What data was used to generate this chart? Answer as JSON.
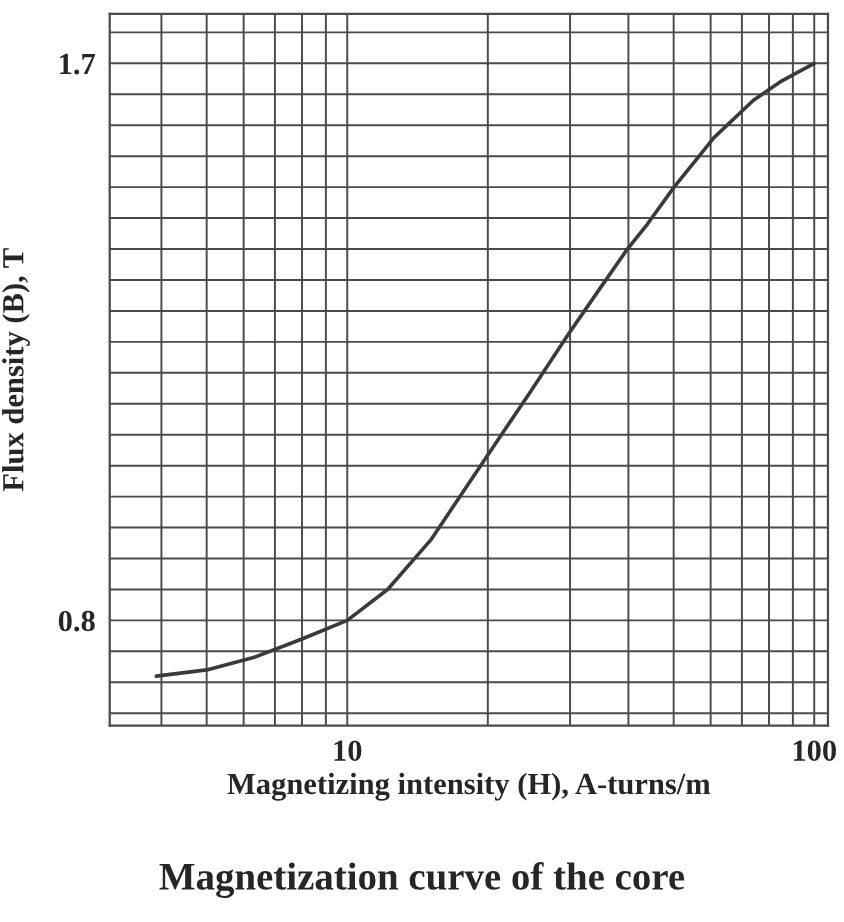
{
  "chart_data": {
    "type": "line",
    "title": "Magnetization curve of the core",
    "xlabel": "Magnetizing intensity (H), A-turns/m",
    "ylabel": "Flux density (B), T",
    "log": "x",
    "x": [
      3.9,
      5.0,
      6.3,
      8.0,
      10,
      12.2,
      15.1,
      19.3,
      24.7,
      29.6,
      34.3,
      39.8,
      43.9,
      50.1,
      61,
      74,
      84.5,
      100
    ],
    "series": [
      {
        "color": "#3a3a3a",
        "values": [
          0.71,
          0.72,
          0.74,
          0.77,
          0.8,
          0.85,
          0.93,
          1.05,
          1.17,
          1.26,
          1.33,
          1.4,
          1.44,
          1.5,
          1.58,
          1.64,
          1.67,
          1.7
        ]
      }
    ],
    "xlim": [
      3.1,
      107
    ],
    "xticks": [
      {
        "value": 4,
        "label": null
      },
      {
        "value": 5,
        "label": null
      },
      {
        "value": 6,
        "label": null
      },
      {
        "value": 7,
        "label": null
      },
      {
        "value": 8,
        "label": null
      },
      {
        "value": 9,
        "label": null
      },
      10,
      {
        "value": 20,
        "label": null
      },
      {
        "value": 30,
        "label": null
      },
      {
        "value": 40,
        "label": null
      },
      {
        "value": 50,
        "label": null
      },
      {
        "value": 60,
        "label": null
      },
      {
        "value": 70,
        "label": null
      },
      {
        "value": 80,
        "label": null
      },
      {
        "value": 90,
        "label": null
      },
      100
    ],
    "ylim": [
      0.63,
      1.78
    ],
    "yticks": [
      {
        "value": 0.65,
        "label": null
      },
      {
        "value": 0.7,
        "label": null
      },
      {
        "value": 0.75,
        "label": null
      },
      0.8,
      {
        "value": 0.85,
        "label": null
      },
      {
        "value": 0.9,
        "label": null
      },
      {
        "value": 0.95,
        "label": null
      },
      {
        "value": 1.0,
        "label": null
      },
      {
        "value": 1.05,
        "label": null
      },
      {
        "value": 1.1,
        "label": null
      },
      {
        "value": 1.15,
        "label": null
      },
      {
        "value": 1.2,
        "label": null
      },
      {
        "value": 1.25,
        "label": null
      },
      {
        "value": 1.3,
        "label": null
      },
      {
        "value": 1.35,
        "label": null
      },
      {
        "value": 1.4,
        "label": null
      },
      {
        "value": 1.45,
        "label": null
      },
      {
        "value": 1.5,
        "label": null
      },
      {
        "value": 1.55,
        "label": null
      },
      {
        "value": 1.6,
        "label": null
      },
      {
        "value": 1.65,
        "label": null
      },
      1.7,
      {
        "value": 1.75,
        "label": null
      }
    ],
    "grid": true
  }
}
